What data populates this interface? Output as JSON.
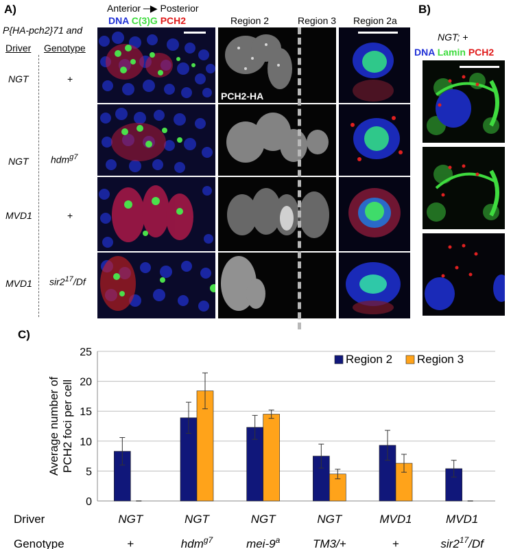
{
  "panelA": {
    "label": "A)",
    "construct": "P{HA-pch2}71 and",
    "driver_header": "Driver",
    "genotype_header": "Genotype",
    "direction": {
      "anterior": "Anterior",
      "posterior": "Posterior"
    },
    "stain_legend": {
      "dna": "DNA",
      "c3g": "C(3)G",
      "pch2": "PCH2"
    },
    "region_headers": {
      "r2": "Region 2",
      "r3": "Region 3",
      "r2a": "Region 2a"
    },
    "channel_label": "PCH2-HA",
    "rows": [
      {
        "driver": "NGT",
        "genotype": "+",
        "sup": ""
      },
      {
        "driver": "NGT",
        "genotype": "hdm",
        "sup": "g7"
      },
      {
        "driver": "MVD1",
        "genotype": "+",
        "sup": ""
      },
      {
        "driver": "MVD1",
        "genotype": "sir2",
        "sup": "17",
        "suffix": "/Df"
      }
    ],
    "colors": {
      "dna": "#1f2fd6",
      "c3g": "#3fdc3f",
      "pch2": "#e01a1a"
    }
  },
  "panelB": {
    "label": "B)",
    "title": "NGT; +",
    "stain_legend": {
      "dna": "DNA",
      "lamin": "Lamin",
      "pch2": "PCH2"
    }
  },
  "panelC": {
    "label": "C)",
    "chart_data": {
      "type": "bar",
      "ylabel": "Average number of PCH2 foci per cell",
      "ylim": [
        0,
        25
      ],
      "yticks": [
        0,
        5,
        10,
        15,
        20,
        25
      ],
      "row_labels": {
        "driver": "Driver",
        "genotype": "Genotype"
      },
      "categories": [
        {
          "driver": "NGT",
          "genotype": "+",
          "sup": "",
          "suffix": ""
        },
        {
          "driver": "NGT",
          "genotype": "hdm",
          "sup": "g7",
          "suffix": ""
        },
        {
          "driver": "NGT",
          "genotype": "mei-9",
          "sup": "a",
          "suffix": ""
        },
        {
          "driver": "NGT",
          "genotype": "TM3/+",
          "sup": "",
          "suffix": ""
        },
        {
          "driver": "MVD1",
          "genotype": "+",
          "sup": "",
          "suffix": ""
        },
        {
          "driver": "MVD1",
          "genotype": "sir2",
          "sup": "17",
          "suffix": "/Df"
        }
      ],
      "series": [
        {
          "name": "Region 2",
          "color": "#10177a",
          "values": [
            8.3,
            13.9,
            12.3,
            7.5,
            9.3,
            5.4
          ],
          "errors": [
            2.3,
            2.6,
            2.0,
            2.0,
            2.5,
            1.4
          ]
        },
        {
          "name": "Region 3",
          "color": "#ffa31a",
          "values": [
            0,
            18.4,
            14.5,
            4.5,
            6.3,
            0
          ],
          "errors": [
            0,
            3.0,
            0.7,
            0.8,
            1.5,
            0
          ]
        }
      ],
      "legend": "top-right",
      "grid": true
    }
  }
}
